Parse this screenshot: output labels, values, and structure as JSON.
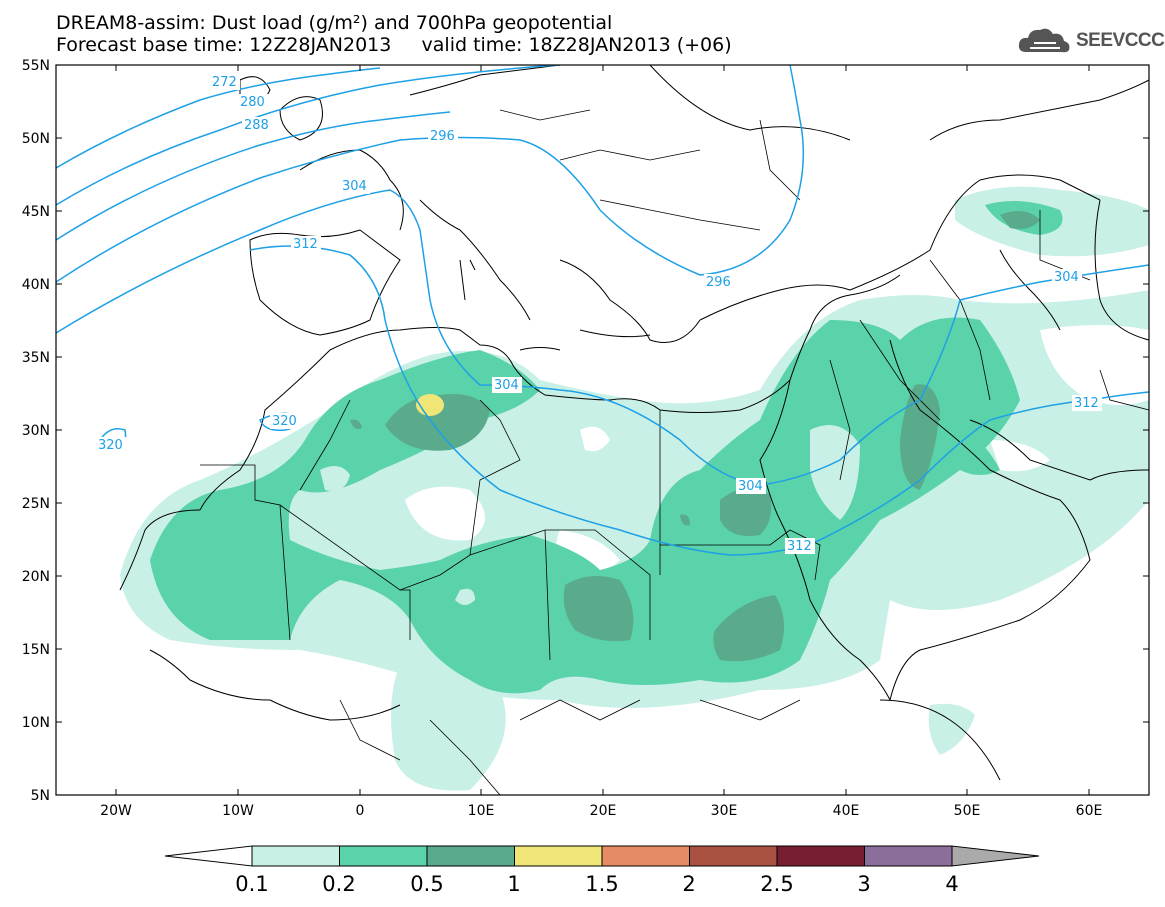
{
  "title": {
    "line1": "DREAM8-assim: Dust load (g/m²) and 700hPa geopotential",
    "line2": "Forecast base time: 12Z28JAN2013     valid time: 18Z28JAN2013 (+06)"
  },
  "logo": {
    "text": "SEEVCCC",
    "icon": "cloud-icon"
  },
  "map": {
    "lat_ticks": [
      "55N",
      "50N",
      "45N",
      "40N",
      "35N",
      "30N",
      "25N",
      "20N",
      "15N",
      "10N",
      "5N"
    ],
    "lon_ticks": [
      "20W",
      "10W",
      "0",
      "10E",
      "20E",
      "30E",
      "40E",
      "50E",
      "60E"
    ],
    "lon_range": [
      -25,
      65
    ],
    "lat_range": [
      5,
      55
    ],
    "contour_labels": [
      "272",
      "280",
      "288",
      "296",
      "304",
      "312",
      "320",
      "320",
      "304",
      "304",
      "312",
      "296",
      "304",
      "312"
    ],
    "colors": {
      "contour": "#1ea0e6",
      "land_border": "#000000",
      "level_0_1": "#c8f0e6",
      "level_0_2": "#5ad2aa",
      "level_0_5": "#5aaa8c",
      "level_1": "#f0e678",
      "level_1_5": "#e68c64",
      "level_2": "#aa5041",
      "level_2_5": "#781e32",
      "level_3": "#8c6e9b",
      "level_4": "#aaaaaa"
    }
  },
  "colorbar": {
    "labels": [
      "0.1",
      "0.2",
      "0.5",
      "1",
      "1.5",
      "2",
      "2.5",
      "3",
      "4"
    ],
    "colors": [
      "#c8f0e6",
      "#5ad2aa",
      "#5aaa8c",
      "#f0e678",
      "#e68c64",
      "#aa5041",
      "#781e32",
      "#8c6e9b"
    ],
    "under_color": "#ffffff",
    "over_color": "#aaaaaa"
  }
}
